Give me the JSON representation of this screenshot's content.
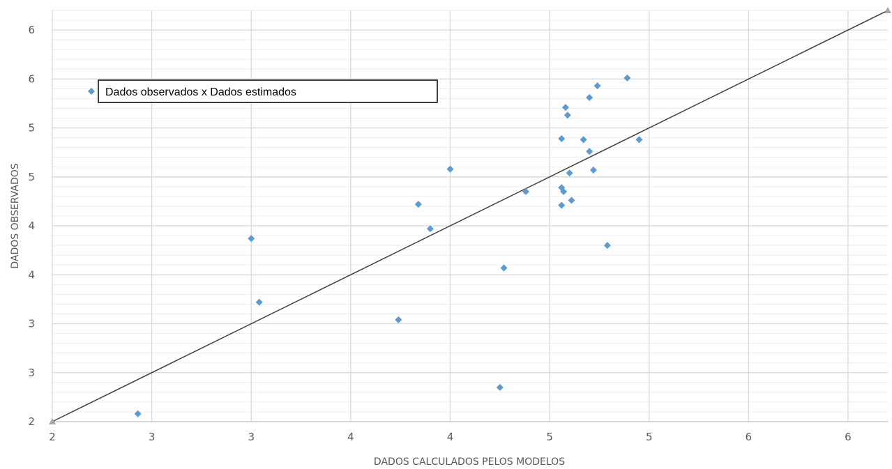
{
  "chart_data": {
    "type": "scatter",
    "title": "",
    "xlabel": "DADOS CALCULADOS PELOS MODELOS",
    "ylabel": "DADOS OBSERVADOS",
    "xlim": [
      2,
      6.2
    ],
    "ylim": [
      2,
      6.2
    ],
    "x_tick_values": [
      2,
      2.5,
      3,
      3.5,
      4,
      4.5,
      5,
      5.5,
      6
    ],
    "x_tick_labels": [
      "2",
      "3",
      "3",
      "4",
      "4",
      "5",
      "5",
      "6",
      "6"
    ],
    "y_tick_values": [
      2,
      2.5,
      3,
      3.5,
      4,
      4.5,
      5,
      5.5,
      6
    ],
    "y_tick_labels": [
      "2",
      "3",
      "3",
      "4",
      "4",
      "5",
      "5",
      "6",
      "6"
    ],
    "grid": true,
    "minor_grid": true,
    "legend_position": "top-left",
    "series": [
      {
        "name": "Dados observados x Dados estimados",
        "color": "#5b9bd5",
        "marker": "diamond",
        "points": [
          [
            2.43,
            2.08
          ],
          [
            3.0,
            3.87
          ],
          [
            3.04,
            3.22
          ],
          [
            3.74,
            3.04
          ],
          [
            3.84,
            4.22
          ],
          [
            3.9,
            3.97
          ],
          [
            4.0,
            4.58
          ],
          [
            4.25,
            2.35
          ],
          [
            4.27,
            3.57
          ],
          [
            4.38,
            4.35
          ],
          [
            4.56,
            4.39
          ],
          [
            4.56,
            4.21
          ],
          [
            4.56,
            4.89
          ],
          [
            4.57,
            4.35
          ],
          [
            4.58,
            5.21
          ],
          [
            4.59,
            5.13
          ],
          [
            4.6,
            4.54
          ],
          [
            4.61,
            4.26
          ],
          [
            4.67,
            4.88
          ],
          [
            4.7,
            5.31
          ],
          [
            4.7,
            4.76
          ],
          [
            4.72,
            4.57
          ],
          [
            4.74,
            5.43
          ],
          [
            4.79,
            3.8
          ],
          [
            4.89,
            5.51
          ],
          [
            4.95,
            4.88
          ]
        ]
      }
    ],
    "reference_line": {
      "from": [
        2,
        2
      ],
      "to": [
        6.2,
        6.2
      ],
      "color": "#404040",
      "end_marker_color": "#a6a6a6"
    }
  }
}
